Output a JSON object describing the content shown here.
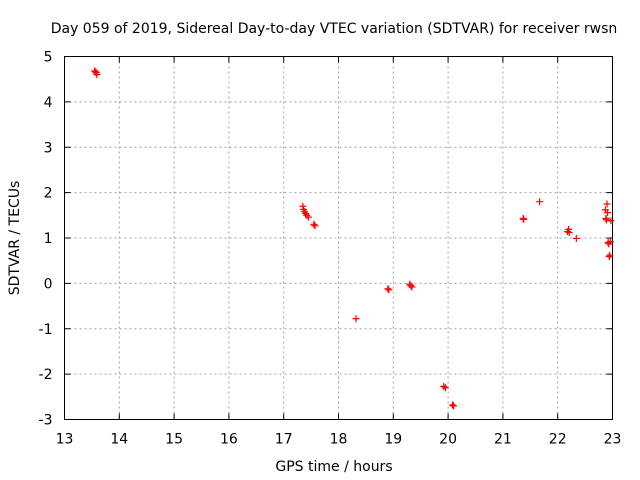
{
  "chart_data": {
    "type": "scatter",
    "title": "Day 059 of 2019, Sidereal Day-to-day VTEC variation (SDTVAR) for receiver rwsn",
    "xlabel": "GPS time / hours",
    "ylabel": "SDTVAR / TECUs",
    "xlim": [
      13,
      23
    ],
    "ylim": [
      -3,
      5
    ],
    "xticks": [
      "13",
      "14",
      "15",
      "16",
      "17",
      "18",
      "19",
      "20",
      "21",
      "22",
      "23"
    ],
    "yticks": [
      "-3",
      "-2",
      "-1",
      "0",
      "1",
      "2",
      "3",
      "4",
      "5"
    ],
    "grid": true,
    "marker": "+",
    "color": "#ff0000",
    "series": [
      {
        "name": "SDTVAR",
        "points": [
          [
            13.55,
            4.68
          ],
          [
            13.57,
            4.66
          ],
          [
            13.58,
            4.64
          ],
          [
            13.59,
            4.6
          ],
          [
            17.35,
            1.7
          ],
          [
            17.36,
            1.63
          ],
          [
            17.38,
            1.58
          ],
          [
            17.4,
            1.54
          ],
          [
            17.42,
            1.5
          ],
          [
            17.45,
            1.46
          ],
          [
            17.55,
            1.3
          ],
          [
            17.57,
            1.27
          ],
          [
            18.32,
            -0.78
          ],
          [
            18.9,
            -0.12
          ],
          [
            18.92,
            -0.14
          ],
          [
            19.3,
            -0.02
          ],
          [
            19.32,
            -0.05
          ],
          [
            19.34,
            -0.08
          ],
          [
            19.92,
            -2.27
          ],
          [
            19.95,
            -2.3
          ],
          [
            20.08,
            -2.68
          ],
          [
            20.1,
            -2.7
          ],
          [
            21.37,
            1.43
          ],
          [
            21.38,
            1.41
          ],
          [
            21.67,
            1.8
          ],
          [
            22.18,
            1.14
          ],
          [
            22.2,
            1.19
          ],
          [
            22.21,
            1.12
          ],
          [
            22.34,
            0.99
          ],
          [
            22.87,
            1.62
          ],
          [
            22.88,
            1.43
          ],
          [
            22.89,
            1.4
          ],
          [
            22.9,
            1.75
          ],
          [
            22.91,
            1.56
          ],
          [
            22.92,
            0.9
          ],
          [
            22.93,
            0.87
          ],
          [
            22.94,
            0.59
          ],
          [
            22.95,
            0.62
          ],
          [
            22.96,
            0.92
          ],
          [
            22.97,
            1.38
          ]
        ]
      }
    ]
  }
}
